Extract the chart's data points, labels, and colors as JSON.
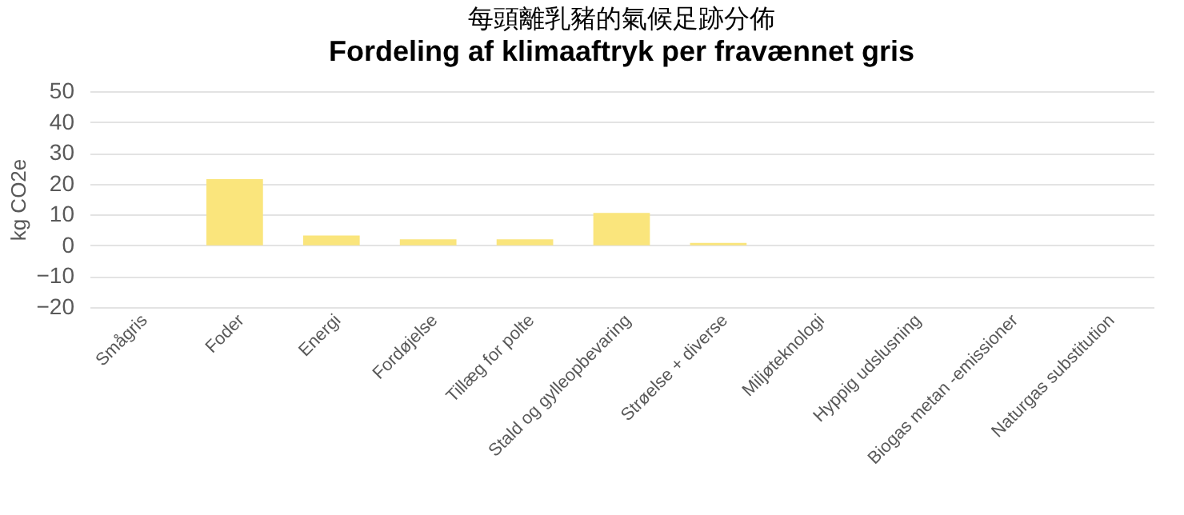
{
  "chart_data": {
    "type": "bar",
    "title": "每頭離乳豬的氣候足跡分佈",
    "subtitle": "Fordeling af klimaaftryk per fravænnet gris",
    "ylabel": "kg CO2e",
    "categories": [
      "Smågris",
      "Foder",
      "Energi",
      "Fordøjelse",
      "Tillæg for polte",
      "Stald og gylleopbevaring",
      "Strøelse + diverse",
      "Miljøteknologi",
      "Hyppig udslusning",
      "Biogas metan -emissioner",
      "Naturgas substitution"
    ],
    "values": [
      0,
      21.5,
      3.2,
      2,
      2,
      10.5,
      0.8,
      0,
      0,
      0,
      0
    ],
    "color": "#fae57c",
    "ylim": [
      -20,
      50
    ],
    "yticks": [
      -20,
      -10,
      0,
      10,
      20,
      30,
      40,
      50
    ],
    "grid": "y"
  }
}
